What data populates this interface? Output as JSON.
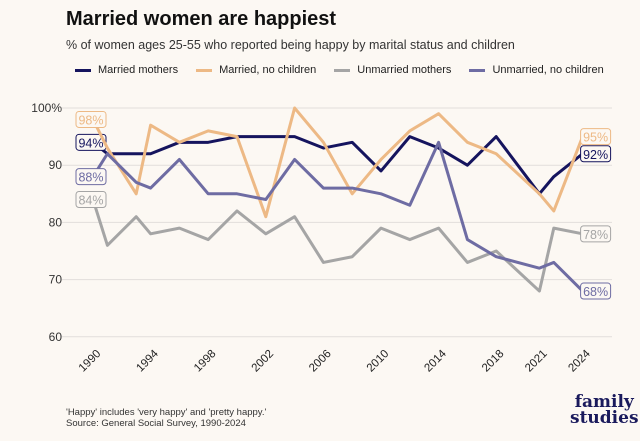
{
  "chart_data": {
    "type": "line",
    "title": "Married women are happiest",
    "subtitle": "% of women ages 25-55 who reported being happy by marital status and children",
    "x": [
      1990,
      1991,
      1993,
      1994,
      1996,
      1998,
      2000,
      2002,
      2004,
      2006,
      2008,
      2010,
      2012,
      2014,
      2016,
      2018,
      2021,
      2022,
      2024
    ],
    "x_tick_labels": [
      "1990",
      "1994",
      "1998",
      "2002",
      "2006",
      "2010",
      "2014",
      "2018",
      "2021",
      "2024"
    ],
    "y_tick_labels": [
      "100%",
      "90",
      "80",
      "70",
      "60"
    ],
    "ylim": [
      60,
      100
    ],
    "grid": true,
    "legend": "top",
    "series": [
      {
        "name": "Married mothers",
        "color": "#15145e",
        "values": [
          94,
          92,
          92,
          92,
          94,
          94,
          95,
          95,
          95,
          93,
          94,
          89,
          95,
          93,
          90,
          95,
          85,
          88,
          92
        ],
        "start_label": "94%",
        "end_label": "92%"
      },
      {
        "name": "Married, no children",
        "color": "#edb985",
        "values": [
          98,
          93,
          85,
          97,
          94,
          96,
          95,
          81,
          100,
          94,
          85,
          91,
          96,
          99,
          94,
          92,
          85,
          82,
          95
        ],
        "start_label": "98%",
        "end_label": "95%"
      },
      {
        "name": "Unmarried mothers",
        "color": "#a5a5a5",
        "values": [
          84,
          76,
          81,
          78,
          79,
          77,
          82,
          78,
          81,
          73,
          74,
          79,
          77,
          79,
          73,
          75,
          68,
          79,
          78
        ],
        "start_label": "84%",
        "end_label": "78%"
      },
      {
        "name": "Unmarried, no children",
        "color": "#6e6ca3",
        "values": [
          88,
          92,
          87,
          86,
          91,
          85,
          85,
          84,
          91,
          86,
          86,
          85,
          83,
          94,
          77,
          74,
          72,
          73,
          68
        ],
        "start_label": "88%",
        "end_label": "68%"
      }
    ]
  },
  "notes": {
    "line1": "'Happy' includes 'very happy' and 'pretty happy.'",
    "line2": "Source: General Social Survey, 1990-2024"
  },
  "logo": {
    "line1": "family",
    "line2": "studies"
  }
}
